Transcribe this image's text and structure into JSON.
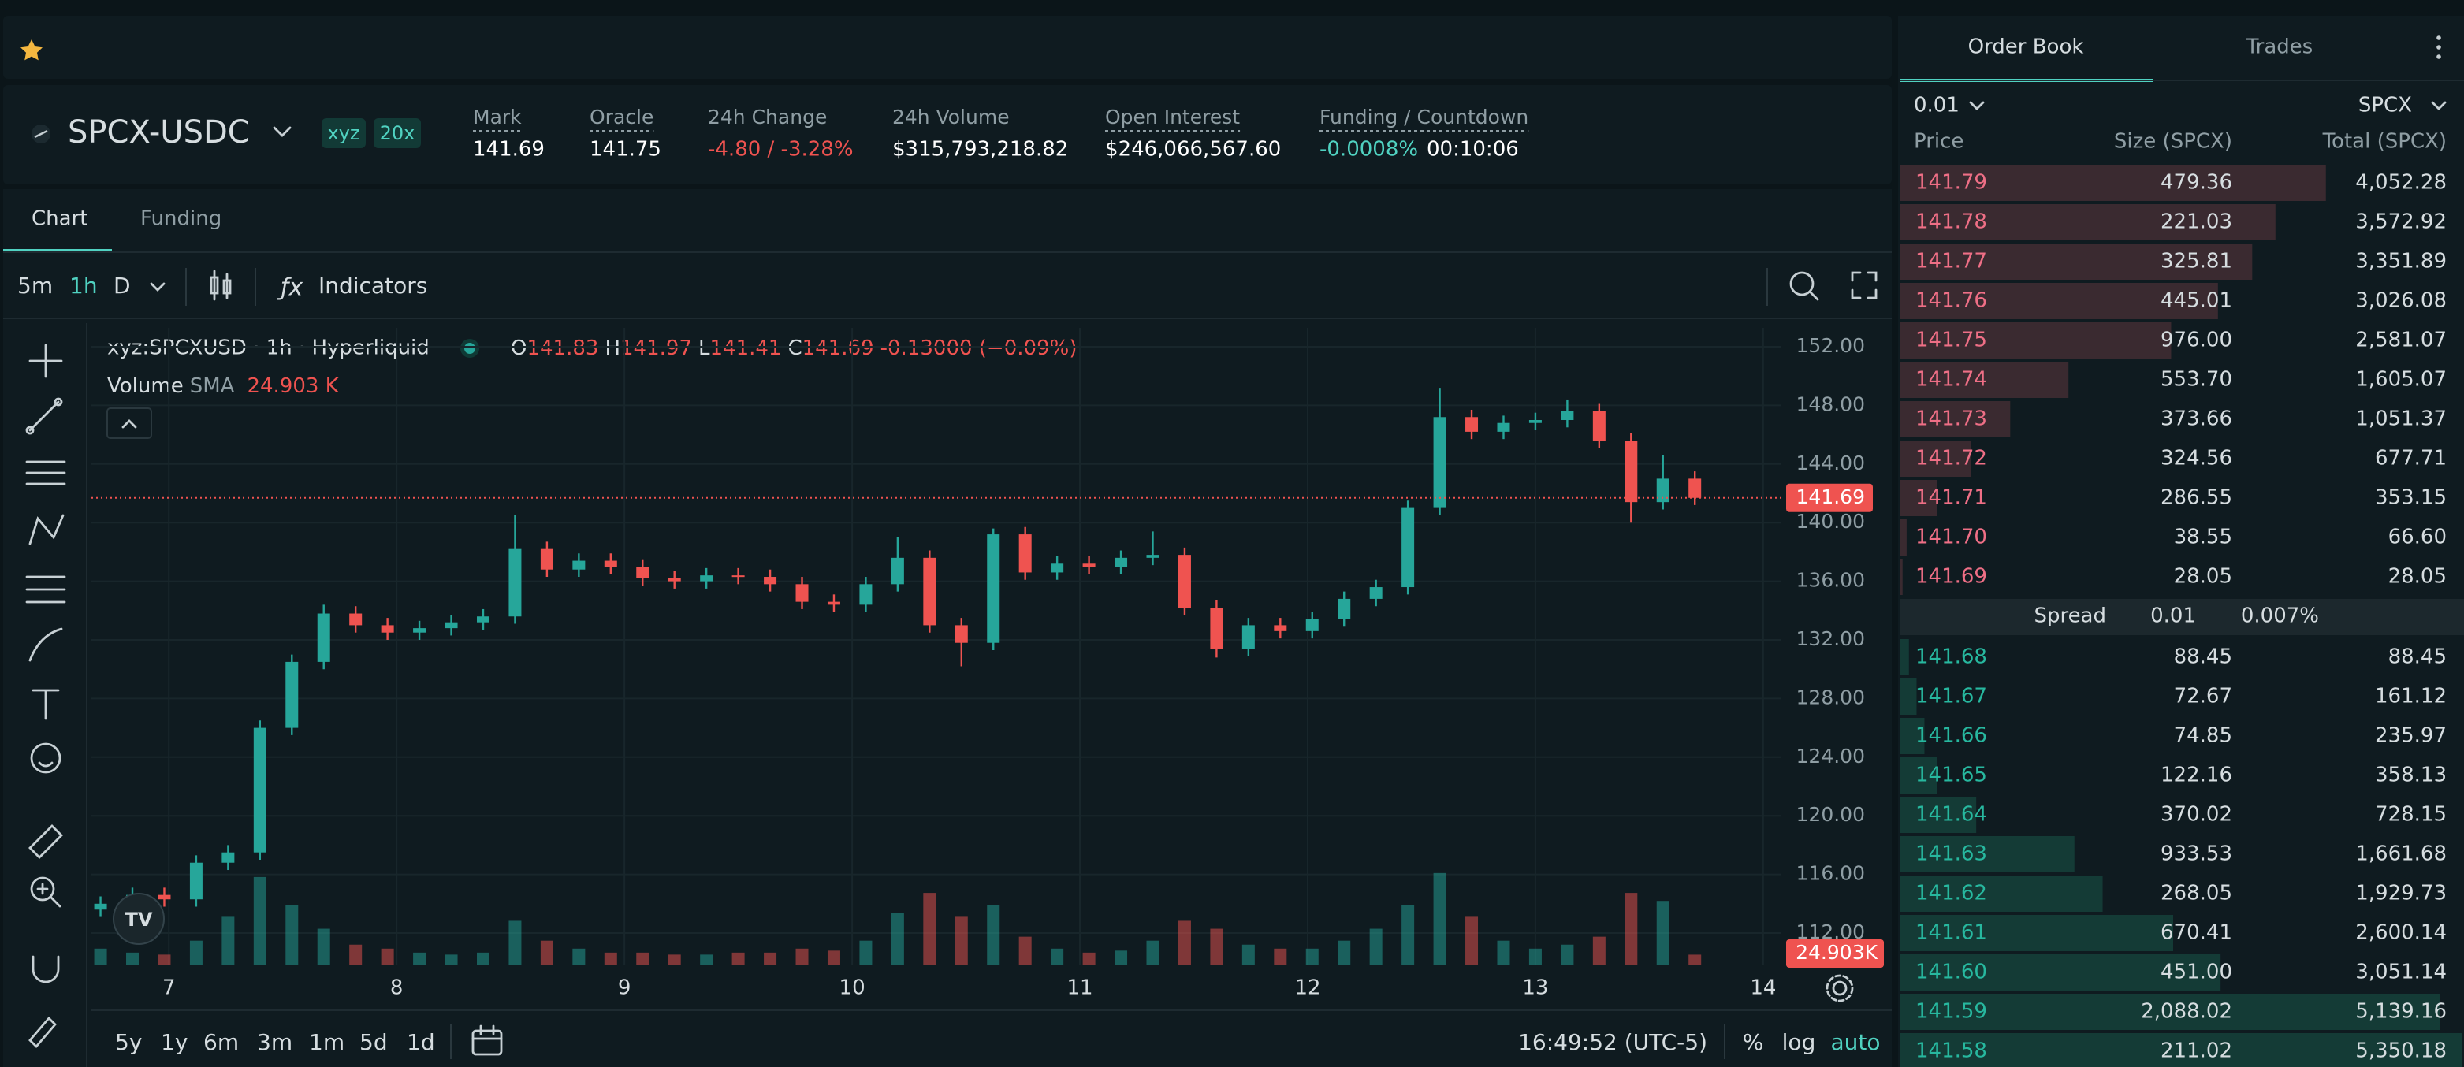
{
  "header": {
    "pair": "SPCX-USDC",
    "badges": [
      "xyz",
      "20x"
    ],
    "stats": [
      {
        "label": "Mark",
        "value": "141.69"
      },
      {
        "label": "Oracle",
        "value": "141.75"
      },
      {
        "label": "24h Change",
        "value": "-4.80 / -3.28%"
      },
      {
        "label": "24h Volume",
        "value": "$315,793,218.82"
      },
      {
        "label": "Open Interest",
        "value": "$246,066,567.60"
      },
      {
        "label": "Funding / Countdown",
        "value": "-0.0008%",
        "extra": "00:10:06"
      }
    ]
  },
  "tabs": [
    "Chart",
    "Funding"
  ],
  "toolbar": {
    "intervals": [
      "5m",
      "1h",
      "D"
    ],
    "indicators": "Indicators",
    "ranges": [
      "5y",
      "1y",
      "6m",
      "3m",
      "1m",
      "5d",
      "1d"
    ],
    "time": "16:49:52 (UTC-5)",
    "options": [
      "%",
      "log",
      "auto"
    ]
  },
  "chart_data": {
    "type": "candlestick",
    "symbol": "xyz:SPCXUSD · 1h · Hyperliquid",
    "ohlc_labels": [
      "O",
      "H",
      "L",
      "C"
    ],
    "ohlc_values": [
      "141.83",
      "141.97",
      "141.41",
      "141.69"
    ],
    "change": "-0.13000 (−0.09%)",
    "volume_title": "Volume",
    "volume_sma_label": "SMA",
    "volume_sma": "24.903 K",
    "volume_label": "24.903K",
    "up_color": "#26a69a",
    "down_color": "#ef5350",
    "x": [
      6.7,
      6.84,
      6.98,
      7.12,
      7.26,
      7.4,
      7.54,
      7.68,
      7.82,
      7.96,
      8.1,
      8.24,
      8.38,
      8.52,
      8.66,
      8.8,
      8.94,
      9.08,
      9.22,
      9.36,
      9.5,
      9.64,
      9.78,
      9.92,
      10.06,
      10.2,
      10.34,
      10.48,
      10.62,
      10.76,
      10.9,
      11.04,
      11.18,
      11.32,
      11.46,
      11.6,
      11.74,
      11.88,
      12.02,
      12.16,
      12.3,
      12.44,
      12.58,
      12.72,
      12.86,
      13.0,
      13.14,
      13.28,
      13.42,
      13.56,
      13.7
    ],
    "open": [
      113.6,
      114.0,
      114.6,
      114.3,
      116.8,
      117.5,
      126.0,
      130.5,
      133.8,
      133.0,
      132.5,
      132.8,
      133.2,
      133.6,
      138.2,
      136.8,
      137.4,
      137.0,
      136.2,
      136.0,
      136.4,
      136.3,
      135.8,
      134.6,
      134.4,
      135.8,
      137.6,
      133.0,
      131.8,
      139.2,
      136.6,
      137.2,
      137.0,
      137.6,
      137.8,
      134.2,
      131.4,
      133.0,
      132.6,
      133.4,
      134.8,
      135.6,
      141.0,
      147.2,
      146.2,
      146.8,
      147.0,
      147.6,
      145.6,
      141.4,
      143.0
    ],
    "high": [
      114.5,
      115.1,
      115.1,
      117.3,
      118.0,
      126.5,
      131.0,
      134.4,
      134.3,
      133.5,
      133.3,
      133.7,
      134.1,
      140.5,
      138.7,
      137.9,
      137.9,
      137.5,
      136.7,
      136.9,
      136.9,
      136.8,
      136.3,
      135.1,
      136.3,
      139.0,
      138.1,
      133.5,
      139.6,
      139.7,
      137.7,
      137.7,
      138.1,
      139.4,
      138.3,
      134.7,
      133.5,
      133.5,
      133.9,
      135.3,
      136.1,
      141.5,
      149.2,
      147.7,
      147.3,
      147.5,
      148.4,
      148.1,
      146.1,
      144.6,
      143.5
    ],
    "low": [
      113.1,
      113.5,
      113.8,
      113.8,
      116.3,
      117.0,
      125.5,
      130.0,
      132.5,
      132.0,
      132.0,
      132.3,
      132.7,
      133.1,
      136.3,
      136.3,
      136.5,
      135.7,
      135.5,
      135.5,
      135.8,
      135.3,
      134.1,
      133.9,
      133.9,
      135.3,
      132.5,
      130.2,
      131.3,
      136.1,
      136.1,
      136.5,
      136.5,
      137.1,
      133.7,
      130.8,
      130.9,
      132.1,
      132.1,
      132.9,
      134.3,
      135.1,
      140.5,
      145.7,
      145.7,
      146.3,
      146.5,
      145.1,
      140.0,
      140.9,
      141.2
    ],
    "close": [
      114.0,
      114.6,
      114.3,
      116.8,
      117.5,
      126.0,
      130.5,
      133.8,
      133.0,
      132.5,
      132.8,
      133.2,
      133.6,
      138.2,
      136.8,
      137.4,
      137.0,
      136.2,
      136.0,
      136.4,
      136.3,
      135.8,
      134.6,
      134.4,
      135.8,
      137.6,
      133.0,
      131.8,
      139.2,
      136.6,
      137.2,
      137.0,
      137.6,
      137.8,
      134.2,
      131.4,
      133.0,
      132.6,
      133.4,
      134.8,
      135.6,
      141.0,
      147.2,
      146.2,
      146.8,
      147.0,
      147.6,
      145.6,
      141.4,
      143.0,
      141.69
    ],
    "volume": [
      40,
      30,
      25,
      60,
      120,
      220,
      150,
      90,
      50,
      40,
      30,
      25,
      30,
      110,
      60,
      40,
      30,
      30,
      25,
      25,
      30,
      30,
      40,
      35,
      60,
      130,
      180,
      120,
      150,
      70,
      40,
      30,
      35,
      60,
      110,
      90,
      50,
      40,
      40,
      60,
      90,
      150,
      230,
      120,
      60,
      40,
      50,
      70,
      180,
      160,
      24.903
    ],
    "volume_lim": [
      0,
      1600
    ],
    "last_price": 141.69,
    "xlim": [
      6.66,
      14.08
    ],
    "xticks": [
      7,
      8,
      9,
      10,
      11,
      12,
      13,
      14
    ],
    "ylim": [
      109.85,
      153.29
    ],
    "yticks": [
      {
        "value": 112,
        "label": "112.00"
      },
      {
        "value": 116,
        "label": "116.00"
      },
      {
        "value": 120,
        "label": "120.00"
      },
      {
        "value": 124,
        "label": "124.00"
      },
      {
        "value": 128,
        "label": "128.00"
      },
      {
        "value": 132,
        "label": "132.00"
      },
      {
        "value": 136,
        "label": "136.00"
      },
      {
        "value": 140,
        "label": "140.00"
      },
      {
        "value": 144,
        "label": "144.00"
      },
      {
        "value": 148,
        "label": "148.00"
      },
      {
        "value": 152,
        "label": "152.00"
      }
    ],
    "grid": true
  },
  "order_book": {
    "tabs": [
      "Order Book",
      "Trades"
    ],
    "tick_size": "0.01",
    "unit": "SPCX",
    "columns": [
      "Price",
      "Size (SPCX)",
      "Total (SPCX)"
    ],
    "asks": [
      [
        "141.79",
        "479.36",
        "4,052.28"
      ],
      [
        "141.78",
        "221.03",
        "3,572.92"
      ],
      [
        "141.77",
        "325.81",
        "3,351.89"
      ],
      [
        "141.76",
        "445.01",
        "3,026.08"
      ],
      [
        "141.75",
        "976.00",
        "2,581.07"
      ],
      [
        "141.74",
        "553.70",
        "1,605.07"
      ],
      [
        "141.73",
        "373.66",
        "1,051.37"
      ],
      [
        "141.72",
        "324.56",
        "677.71"
      ],
      [
        "141.71",
        "286.55",
        "353.15"
      ],
      [
        "141.70",
        "38.55",
        "66.60"
      ],
      [
        "141.69",
        "28.05",
        "28.05"
      ]
    ],
    "spread": {
      "label": "Spread",
      "value": "0.01",
      "percent": "0.007%"
    },
    "bids": [
      [
        "141.68",
        "88.45",
        "88.45"
      ],
      [
        "141.67",
        "72.67",
        "161.12"
      ],
      [
        "141.66",
        "74.85",
        "235.97"
      ],
      [
        "141.65",
        "122.16",
        "358.13"
      ],
      [
        "141.64",
        "370.02",
        "728.15"
      ],
      [
        "141.63",
        "933.53",
        "1,661.68"
      ],
      [
        "141.62",
        "268.05",
        "1,929.73"
      ],
      [
        "141.61",
        "670.41",
        "2,600.14"
      ],
      [
        "141.60",
        "451.00",
        "3,051.14"
      ],
      [
        "141.59",
        "2,088.02",
        "5,139.16"
      ],
      [
        "141.58",
        "211.02",
        "5,350.18"
      ]
    ]
  }
}
